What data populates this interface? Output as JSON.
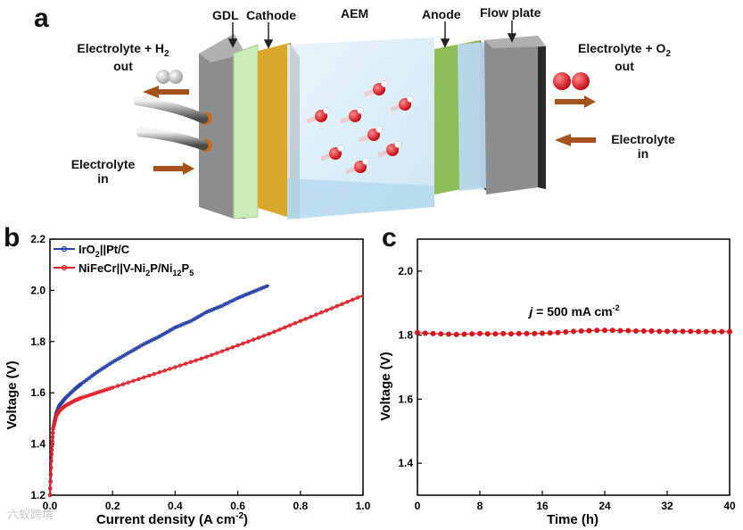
{
  "panel_a": {
    "letter": "a",
    "labels": {
      "gdl": "GDL",
      "cathode": "Cathode",
      "aem": "AEM",
      "anode": "Anode",
      "flow_plate": "Flow plate",
      "left_out_line1": "Electrolyte  + H",
      "left_out_sub": "2",
      "left_out_line2": "out",
      "left_in_line1": "Electrolyte",
      "left_in_line2": "in",
      "right_out_line1": "Electrolyte  + O",
      "right_out_sub": "2",
      "right_out_line2": "out",
      "right_in_line1": "Electrolyte",
      "right_in_line2": "in"
    },
    "colors": {
      "plate": "#8d8d8d",
      "gdl": "#c9ecb8",
      "cathode": "#d9a82a",
      "membrane": "#d6ecf7",
      "anode": "#8dbd57",
      "flow_plate_blue": "#b9d8ef",
      "arrow": "#a5521c",
      "h2": "#b8b8b8",
      "o2": "#d8131b"
    }
  },
  "panel_b": {
    "letter": "b",
    "chart_data": {
      "type": "line",
      "xlabel": "Current density (A cm",
      "xlabel_sup": "-2",
      "xlabel_end": ")",
      "ylabel": "Voltage (V)",
      "xlim": [
        0.0,
        1.0
      ],
      "ylim": [
        1.2,
        2.2
      ],
      "xticks": [
        "0.0",
        "0.2",
        "0.4",
        "0.6",
        "0.8",
        "1.0"
      ],
      "yticks": [
        "1.2",
        "1.4",
        "1.6",
        "1.8",
        "2.0",
        "2.2"
      ],
      "series": [
        {
          "name": "IrO2||Pt/C",
          "legend_parts": [
            "IrO",
            "2",
            "||Pt/C"
          ],
          "color": "#2a43a8",
          "x": [
            0.0,
            0.005,
            0.01,
            0.02,
            0.03,
            0.05,
            0.08,
            0.1,
            0.15,
            0.2,
            0.25,
            0.3,
            0.35,
            0.4,
            0.45,
            0.5,
            0.55,
            0.6,
            0.65,
            0.7
          ],
          "y": [
            1.2,
            1.36,
            1.46,
            1.52,
            1.55,
            1.58,
            1.615,
            1.635,
            1.68,
            1.72,
            1.755,
            1.79,
            1.82,
            1.855,
            1.88,
            1.915,
            1.94,
            1.97,
            1.995,
            2.02
          ]
        },
        {
          "name": "NiFeCr||V-Ni2P/Ni12P5",
          "legend_parts": [
            "NiFeCr||V-Ni",
            "2",
            "P/Ni",
            "12",
            "P",
            "5"
          ],
          "color": "#e2222b",
          "x": [
            0.0,
            0.005,
            0.01,
            0.02,
            0.03,
            0.05,
            0.08,
            0.1,
            0.15,
            0.2,
            0.3,
            0.4,
            0.5,
            0.6,
            0.7,
            0.8,
            0.9,
            1.0
          ],
          "y": [
            1.2,
            1.36,
            1.46,
            1.51,
            1.53,
            1.55,
            1.57,
            1.58,
            1.6,
            1.62,
            1.66,
            1.7,
            1.74,
            1.785,
            1.83,
            1.88,
            1.93,
            1.98
          ]
        }
      ]
    }
  },
  "panel_c": {
    "letter": "c",
    "chart_data": {
      "type": "scatter",
      "xlabel": "Time (h)",
      "ylabel": "Voltage (V)",
      "xlim": [
        0,
        40
      ],
      "ylim": [
        1.3,
        2.1
      ],
      "xticks": [
        "0",
        "8",
        "16",
        "24",
        "32",
        "40"
      ],
      "yticks": [
        "1.4",
        "1.6",
        "1.8",
        "2.0"
      ],
      "annotation_prefix": "j",
      "annotation_text": " = 500 mA cm",
      "annotation_sup": "-2",
      "series": [
        {
          "name": "j = 500 mA cm-2",
          "color": "#d8131b",
          "x": [
            0,
            1,
            2,
            3,
            4,
            5,
            6,
            7,
            8,
            9,
            10,
            11,
            12,
            13,
            14,
            15,
            16,
            17,
            18,
            19,
            20,
            21,
            22,
            23,
            24,
            25,
            26,
            27,
            28,
            29,
            30,
            31,
            32,
            33,
            34,
            35,
            36,
            37,
            38,
            39,
            40
          ],
          "y": [
            1.808,
            1.806,
            1.805,
            1.804,
            1.803,
            1.802,
            1.803,
            1.804,
            1.805,
            1.804,
            1.804,
            1.805,
            1.804,
            1.805,
            1.805,
            1.805,
            1.806,
            1.807,
            1.808,
            1.81,
            1.812,
            1.813,
            1.814,
            1.815,
            1.815,
            1.815,
            1.814,
            1.814,
            1.813,
            1.813,
            1.813,
            1.812,
            1.812,
            1.812,
            1.812,
            1.812,
            1.811,
            1.811,
            1.811,
            1.811,
            1.811
          ]
        }
      ]
    }
  },
  "watermark": {
    "text": "六蚁跨境"
  }
}
